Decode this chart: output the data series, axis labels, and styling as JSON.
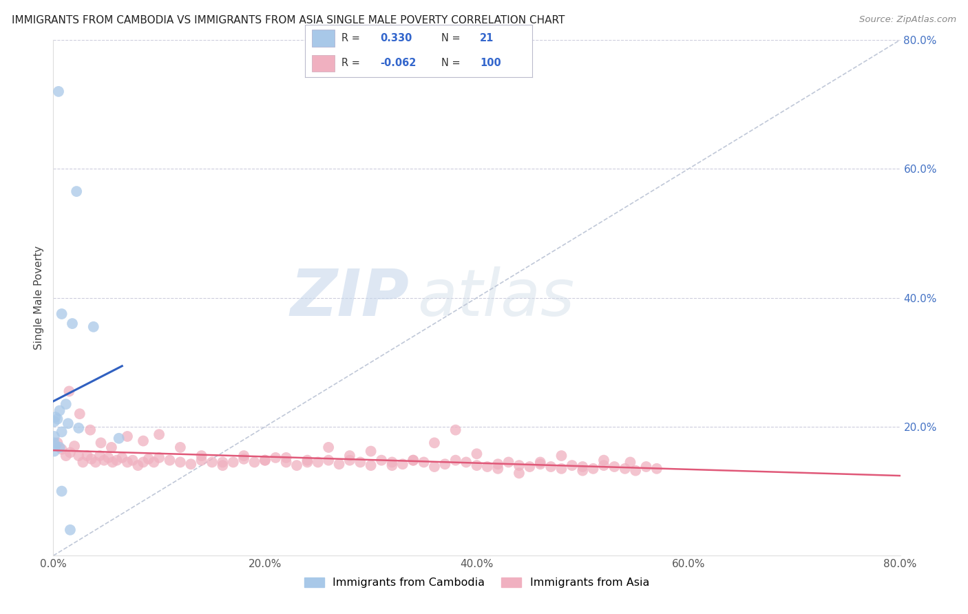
{
  "title": "IMMIGRANTS FROM CAMBODIA VS IMMIGRANTS FROM ASIA SINGLE MALE POVERTY CORRELATION CHART",
  "source": "Source: ZipAtlas.com",
  "ylabel": "Single Male Poverty",
  "xlim": [
    0.0,
    0.8
  ],
  "ylim": [
    0.0,
    0.8
  ],
  "xtick_vals": [
    0.0,
    0.2,
    0.4,
    0.6,
    0.8
  ],
  "xtick_labels": [
    "0.0%",
    "20.0%",
    "40.0%",
    "60.0%",
    "80.0%"
  ],
  "ytick_vals": [
    0.2,
    0.4,
    0.6,
    0.8
  ],
  "ytick_labels": [
    "20.0%",
    "40.0%",
    "60.0%",
    "80.0%"
  ],
  "blue_color": "#a8c8e8",
  "pink_color": "#f0b0c0",
  "blue_line_color": "#3060c0",
  "pink_line_color": "#e05878",
  "diag_line_color": "#c0c8d8",
  "background_color": "#ffffff",
  "watermark_zip": "ZIP",
  "watermark_atlas": "atlas",
  "tick_color": "#4472c4",
  "legend_blue_r": "0.330",
  "legend_blue_n": "21",
  "legend_pink_r": "-0.062",
  "legend_pink_n": "100",
  "cambodia_x": [
    0.005,
    0.022,
    0.008,
    0.018,
    0.038,
    0.012,
    0.006,
    0.002,
    0.004,
    0.001,
    0.014,
    0.024,
    0.008,
    0.001,
    0.062,
    0.001,
    0.002,
    0.006,
    0.001,
    0.008,
    0.016
  ],
  "cambodia_y": [
    0.72,
    0.565,
    0.375,
    0.36,
    0.355,
    0.235,
    0.225,
    0.215,
    0.212,
    0.208,
    0.205,
    0.198,
    0.192,
    0.185,
    0.182,
    0.175,
    0.17,
    0.168,
    0.162,
    0.1,
    0.04
  ],
  "asia_x": [
    0.004,
    0.008,
    0.012,
    0.016,
    0.02,
    0.024,
    0.028,
    0.032,
    0.036,
    0.04,
    0.044,
    0.048,
    0.052,
    0.056,
    0.06,
    0.065,
    0.07,
    0.075,
    0.08,
    0.085,
    0.09,
    0.095,
    0.1,
    0.11,
    0.12,
    0.13,
    0.14,
    0.15,
    0.16,
    0.17,
    0.18,
    0.19,
    0.2,
    0.21,
    0.22,
    0.23,
    0.24,
    0.25,
    0.26,
    0.27,
    0.28,
    0.29,
    0.3,
    0.31,
    0.32,
    0.33,
    0.34,
    0.35,
    0.36,
    0.37,
    0.38,
    0.39,
    0.4,
    0.41,
    0.42,
    0.43,
    0.44,
    0.45,
    0.46,
    0.47,
    0.48,
    0.49,
    0.5,
    0.51,
    0.52,
    0.53,
    0.54,
    0.55,
    0.56,
    0.57,
    0.015,
    0.025,
    0.035,
    0.045,
    0.055,
    0.07,
    0.085,
    0.1,
    0.12,
    0.14,
    0.16,
    0.18,
    0.2,
    0.22,
    0.24,
    0.26,
    0.28,
    0.3,
    0.32,
    0.34,
    0.36,
    0.38,
    0.4,
    0.42,
    0.44,
    0.46,
    0.48,
    0.5,
    0.52,
    0.545
  ],
  "asia_y": [
    0.175,
    0.165,
    0.155,
    0.16,
    0.17,
    0.155,
    0.145,
    0.155,
    0.15,
    0.145,
    0.155,
    0.148,
    0.152,
    0.145,
    0.148,
    0.152,
    0.145,
    0.148,
    0.14,
    0.145,
    0.15,
    0.145,
    0.152,
    0.148,
    0.145,
    0.142,
    0.148,
    0.145,
    0.14,
    0.145,
    0.15,
    0.145,
    0.148,
    0.152,
    0.145,
    0.14,
    0.148,
    0.145,
    0.148,
    0.142,
    0.148,
    0.145,
    0.14,
    0.148,
    0.145,
    0.142,
    0.148,
    0.145,
    0.138,
    0.142,
    0.148,
    0.145,
    0.14,
    0.138,
    0.142,
    0.145,
    0.14,
    0.138,
    0.142,
    0.138,
    0.135,
    0.14,
    0.138,
    0.135,
    0.14,
    0.138,
    0.135,
    0.132,
    0.138,
    0.135,
    0.255,
    0.22,
    0.195,
    0.175,
    0.168,
    0.185,
    0.178,
    0.188,
    0.168,
    0.155,
    0.145,
    0.155,
    0.148,
    0.152,
    0.145,
    0.168,
    0.155,
    0.162,
    0.14,
    0.148,
    0.175,
    0.195,
    0.158,
    0.135,
    0.128,
    0.145,
    0.155,
    0.132,
    0.148,
    0.145
  ]
}
